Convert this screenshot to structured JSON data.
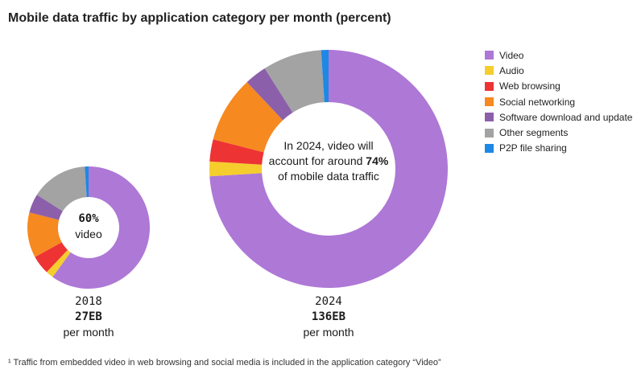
{
  "chart_data": {
    "type": "pie",
    "title": "Mobile data traffic by application category per month (percent)",
    "categories": [
      "Video",
      "Audio",
      "Web browsing",
      "Social networking",
      "Software download and update",
      "Other segments",
      "P2P file sharing"
    ],
    "colors": [
      "#ae78d6",
      "#f5cd2d",
      "#ee3334",
      "#f6891f",
      "#8c5fab",
      "#a3a3a3",
      "#1e88e5"
    ],
    "charts": [
      {
        "year": "2018",
        "volume": "27EB",
        "unit_text": "per month",
        "center_value": "60%",
        "center_text": "video",
        "values": [
          60,
          2,
          5,
          12,
          5,
          15,
          1
        ]
      },
      {
        "year": "2024",
        "volume": "136EB",
        "unit_text": "per month",
        "center_pre": "In 2024, video will account for around",
        "center_value": "74%",
        "center_post": "of mobile data traffic",
        "values": [
          74,
          2,
          3,
          9,
          3,
          8,
          1
        ]
      }
    ],
    "footnote": "¹ Traffic from embedded video in web browsing and social media is included in the application category “Video”"
  }
}
